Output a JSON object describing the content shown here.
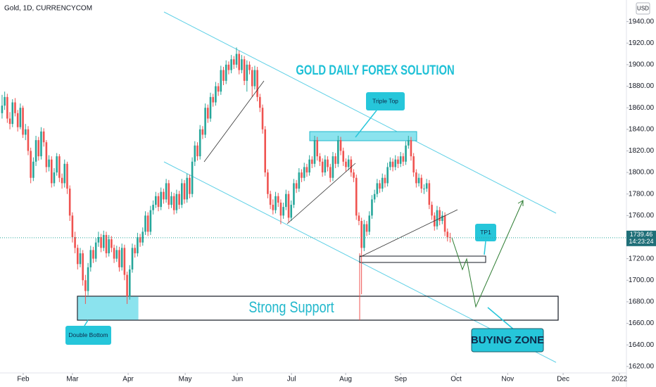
{
  "chart_data": {
    "type": "candlestick",
    "symbol": "Gold, 1D, CURRENCYCOM",
    "currency": "USD",
    "title": "GOLD DAILY FOREX SOLUTION",
    "annotations": {
      "triple_top": "Triple Top",
      "tp1": "TP1",
      "strong_support": "Strong Support",
      "double_bottom": "Double Bottom",
      "buying_zone": "BUYING ZONE"
    },
    "countdown": "14:23:24",
    "up_color": "#26a69a",
    "down_color": "#ef5350",
    "xlim": [
      -0.8,
      239.7
    ],
    "xticks": [
      {
        "value": 8.1,
        "label": "Feb"
      },
      {
        "value": 27,
        "label": "Mar"
      },
      {
        "value": 48.4,
        "label": "Apr"
      },
      {
        "value": 70.3,
        "label": "May"
      },
      {
        "value": 90.3,
        "label": "Jun"
      },
      {
        "value": 111.1,
        "label": "Jul"
      },
      {
        "value": 131.9,
        "label": "Aug"
      },
      {
        "value": 153,
        "label": "Sep"
      },
      {
        "value": 174.3,
        "label": "Oct"
      },
      {
        "value": 194.1,
        "label": "Nov"
      },
      {
        "value": 215.4,
        "label": "Dec"
      },
      {
        "value": 237,
        "label": "2022"
      }
    ],
    "ylim": [
      1614,
      1960
    ],
    "yticks": [
      {
        "value": 1620,
        "label": "1620.00"
      },
      {
        "value": 1640,
        "label": "1640.00"
      },
      {
        "value": 1660,
        "label": "1660.00"
      },
      {
        "value": 1680,
        "label": "1680.00"
      },
      {
        "value": 1700,
        "label": "1700.00"
      },
      {
        "value": 1720,
        "label": "1720.00"
      },
      {
        "value": 1740,
        "label": "1740.00"
      },
      {
        "value": 1760,
        "label": "1760.00"
      },
      {
        "value": 1780,
        "label": "1780.00"
      },
      {
        "value": 1800,
        "label": "1800.00"
      },
      {
        "value": 1820,
        "label": "1820.00"
      },
      {
        "value": 1840,
        "label": "1840.00"
      },
      {
        "value": 1860,
        "label": "1860.00"
      },
      {
        "value": 1880,
        "label": "1880.00"
      },
      {
        "value": 1900,
        "label": "1900.00"
      },
      {
        "value": 1920,
        "label": "1920.00"
      },
      {
        "value": 1940,
        "label": "1940.00"
      }
    ],
    "candles": [
      [
        1855,
        1872,
        1850,
        1862
      ],
      [
        1862,
        1875,
        1858,
        1870
      ],
      [
        1870,
        1873,
        1846,
        1850
      ],
      [
        1850,
        1856,
        1840,
        1845
      ],
      [
        1845,
        1868,
        1842,
        1865
      ],
      [
        1865,
        1869,
        1852,
        1855
      ],
      [
        1855,
        1858,
        1838,
        1842
      ],
      [
        1842,
        1864,
        1840,
        1860
      ],
      [
        1860,
        1862,
        1832,
        1835
      ],
      [
        1835,
        1845,
        1830,
        1840
      ],
      [
        1840,
        1843,
        1816,
        1820
      ],
      [
        1820,
        1823,
        1790,
        1795
      ],
      [
        1795,
        1814,
        1792,
        1810
      ],
      [
        1810,
        1834,
        1806,
        1830
      ],
      [
        1830,
        1833,
        1811,
        1815
      ],
      [
        1815,
        1842,
        1812,
        1838
      ],
      [
        1838,
        1841,
        1824,
        1828
      ],
      [
        1828,
        1830,
        1800,
        1805
      ],
      [
        1805,
        1816,
        1801,
        1812
      ],
      [
        1812,
        1815,
        1786,
        1790
      ],
      [
        1790,
        1804,
        1787,
        1800
      ],
      [
        1800,
        1818,
        1797,
        1815
      ],
      [
        1815,
        1817,
        1791,
        1795
      ],
      [
        1795,
        1799,
        1785,
        1790
      ],
      [
        1790,
        1812,
        1786,
        1808
      ],
      [
        1808,
        1810,
        1780,
        1785
      ],
      [
        1785,
        1788,
        1755,
        1760
      ],
      [
        1760,
        1763,
        1735,
        1740
      ],
      [
        1740,
        1745,
        1725,
        1730
      ],
      [
        1730,
        1733,
        1710,
        1715
      ],
      [
        1715,
        1730,
        1712,
        1725
      ],
      [
        1725,
        1728,
        1695,
        1700
      ],
      [
        1700,
        1705,
        1678,
        1690
      ],
      [
        1690,
        1716,
        1686,
        1712
      ],
      [
        1712,
        1732,
        1708,
        1728
      ],
      [
        1728,
        1731,
        1716,
        1720
      ],
      [
        1720,
        1739,
        1717,
        1735
      ],
      [
        1735,
        1745,
        1731,
        1740
      ],
      [
        1740,
        1743,
        1726,
        1730
      ],
      [
        1730,
        1746,
        1727,
        1742
      ],
      [
        1742,
        1745,
        1721,
        1725
      ],
      [
        1725,
        1742,
        1722,
        1738
      ],
      [
        1738,
        1741,
        1726,
        1730
      ],
      [
        1730,
        1733,
        1716,
        1720
      ],
      [
        1720,
        1732,
        1717,
        1728
      ],
      [
        1728,
        1731,
        1708,
        1712
      ],
      [
        1712,
        1734,
        1709,
        1730
      ],
      [
        1730,
        1733,
        1700,
        1705
      ],
      [
        1705,
        1708,
        1678,
        1685
      ],
      [
        1685,
        1714,
        1682,
        1710
      ],
      [
        1710,
        1734,
        1707,
        1730
      ],
      [
        1730,
        1733,
        1721,
        1725
      ],
      [
        1725,
        1744,
        1722,
        1740
      ],
      [
        1740,
        1743,
        1731,
        1735
      ],
      [
        1735,
        1749,
        1732,
        1745
      ],
      [
        1745,
        1764,
        1742,
        1760
      ],
      [
        1760,
        1763,
        1741,
        1745
      ],
      [
        1745,
        1769,
        1742,
        1765
      ],
      [
        1765,
        1774,
        1761,
        1770
      ],
      [
        1770,
        1782,
        1767,
        1778
      ],
      [
        1778,
        1781,
        1764,
        1768
      ],
      [
        1768,
        1786,
        1765,
        1782
      ],
      [
        1782,
        1785,
        1771,
        1775
      ],
      [
        1775,
        1794,
        1772,
        1790
      ],
      [
        1790,
        1793,
        1766,
        1770
      ],
      [
        1770,
        1782,
        1767,
        1778
      ],
      [
        1778,
        1781,
        1761,
        1765
      ],
      [
        1765,
        1784,
        1762,
        1780
      ],
      [
        1780,
        1783,
        1766,
        1770
      ],
      [
        1770,
        1794,
        1767,
        1790
      ],
      [
        1790,
        1793,
        1771,
        1775
      ],
      [
        1775,
        1799,
        1772,
        1795
      ],
      [
        1795,
        1798,
        1776,
        1780
      ],
      [
        1780,
        1814,
        1777,
        1810
      ],
      [
        1810,
        1829,
        1806,
        1825
      ],
      [
        1825,
        1828,
        1811,
        1815
      ],
      [
        1815,
        1844,
        1812,
        1840
      ],
      [
        1840,
        1843,
        1831,
        1835
      ],
      [
        1835,
        1864,
        1832,
        1860
      ],
      [
        1860,
        1863,
        1846,
        1850
      ],
      [
        1850,
        1874,
        1847,
        1870
      ],
      [
        1870,
        1873,
        1861,
        1865
      ],
      [
        1865,
        1884,
        1862,
        1880
      ],
      [
        1880,
        1883,
        1871,
        1875
      ],
      [
        1875,
        1899,
        1872,
        1895
      ],
      [
        1895,
        1898,
        1881,
        1885
      ],
      [
        1885,
        1904,
        1882,
        1900
      ],
      [
        1900,
        1903,
        1891,
        1895
      ],
      [
        1895,
        1909,
        1892,
        1905
      ],
      [
        1905,
        1908,
        1896,
        1900
      ],
      [
        1900,
        1916,
        1897,
        1910
      ],
      [
        1910,
        1913,
        1891,
        1895
      ],
      [
        1895,
        1909,
        1892,
        1905
      ],
      [
        1905,
        1908,
        1881,
        1885
      ],
      [
        1885,
        1904,
        1875,
        1900
      ],
      [
        1900,
        1903,
        1891,
        1895
      ],
      [
        1895,
        1898,
        1870,
        1880
      ],
      [
        1880,
        1899,
        1877,
        1895
      ],
      [
        1895,
        1898,
        1866,
        1870
      ],
      [
        1870,
        1873,
        1856,
        1860
      ],
      [
        1860,
        1863,
        1836,
        1840
      ],
      [
        1840,
        1843,
        1796,
        1800
      ],
      [
        1800,
        1803,
        1776,
        1780
      ],
      [
        1780,
        1783,
        1766,
        1770
      ],
      [
        1770,
        1775,
        1761,
        1765
      ],
      [
        1765,
        1782,
        1762,
        1778
      ],
      [
        1778,
        1781,
        1768,
        1772
      ],
      [
        1772,
        1775,
        1752,
        1760
      ],
      [
        1760,
        1772,
        1757,
        1768
      ],
      [
        1768,
        1784,
        1765,
        1780
      ],
      [
        1780,
        1783,
        1754,
        1758
      ],
      [
        1758,
        1774,
        1755,
        1770
      ],
      [
        1770,
        1794,
        1767,
        1790
      ],
      [
        1790,
        1793,
        1781,
        1785
      ],
      [
        1785,
        1804,
        1782,
        1800
      ],
      [
        1800,
        1803,
        1791,
        1795
      ],
      [
        1795,
        1809,
        1792,
        1805
      ],
      [
        1805,
        1808,
        1796,
        1800
      ],
      [
        1800,
        1816,
        1797,
        1812
      ],
      [
        1812,
        1815,
        1804,
        1808
      ],
      [
        1808,
        1834,
        1805,
        1830
      ],
      [
        1830,
        1833,
        1811,
        1815
      ],
      [
        1815,
        1818,
        1806,
        1810
      ],
      [
        1810,
        1813,
        1796,
        1800
      ],
      [
        1800,
        1816,
        1797,
        1812
      ],
      [
        1812,
        1815,
        1801,
        1805
      ],
      [
        1805,
        1808,
        1791,
        1795
      ],
      [
        1795,
        1819,
        1792,
        1815
      ],
      [
        1815,
        1818,
        1804,
        1808
      ],
      [
        1808,
        1834,
        1805,
        1830
      ],
      [
        1830,
        1833,
        1816,
        1820
      ],
      [
        1820,
        1823,
        1806,
        1810
      ],
      [
        1810,
        1813,
        1801,
        1805
      ],
      [
        1805,
        1816,
        1802,
        1812
      ],
      [
        1812,
        1815,
        1796,
        1800
      ],
      [
        1800,
        1803,
        1791,
        1795
      ],
      [
        1795,
        1798,
        1756,
        1760
      ],
      [
        1760,
        1763,
        1751,
        1755
      ],
      [
        1755,
        1758,
        1687,
        1730
      ],
      [
        1730,
        1756,
        1727,
        1752
      ],
      [
        1752,
        1755,
        1741,
        1745
      ],
      [
        1745,
        1764,
        1742,
        1760
      ],
      [
        1760,
        1779,
        1757,
        1775
      ],
      [
        1775,
        1784,
        1772,
        1780
      ],
      [
        1780,
        1794,
        1777,
        1790
      ],
      [
        1790,
        1793,
        1781,
        1785
      ],
      [
        1785,
        1799,
        1782,
        1795
      ],
      [
        1795,
        1798,
        1786,
        1790
      ],
      [
        1790,
        1809,
        1787,
        1805
      ],
      [
        1805,
        1814,
        1802,
        1810
      ],
      [
        1810,
        1813,
        1801,
        1805
      ],
      [
        1805,
        1816,
        1802,
        1812
      ],
      [
        1812,
        1815,
        1804,
        1808
      ],
      [
        1808,
        1819,
        1805,
        1815
      ],
      [
        1815,
        1818,
        1806,
        1810
      ],
      [
        1810,
        1829,
        1807,
        1825
      ],
      [
        1825,
        1834,
        1822,
        1830
      ],
      [
        1830,
        1833,
        1811,
        1815
      ],
      [
        1815,
        1818,
        1796,
        1800
      ],
      [
        1800,
        1803,
        1786,
        1790
      ],
      [
        1790,
        1799,
        1787,
        1795
      ],
      [
        1795,
        1798,
        1781,
        1785
      ],
      [
        1785,
        1789,
        1780,
        1785
      ],
      [
        1785,
        1794,
        1782,
        1790
      ],
      [
        1790,
        1793,
        1766,
        1770
      ],
      [
        1770,
        1773,
        1756,
        1760
      ],
      [
        1760,
        1763,
        1746,
        1750
      ],
      [
        1750,
        1769,
        1747,
        1765
      ],
      [
        1765,
        1768,
        1751,
        1755
      ],
      [
        1755,
        1764,
        1752,
        1760
      ],
      [
        1760,
        1763,
        1741,
        1745
      ],
      [
        1745,
        1748,
        1736,
        1740
      ],
      [
        1740,
        1744,
        1735,
        1739.46
      ]
    ]
  }
}
